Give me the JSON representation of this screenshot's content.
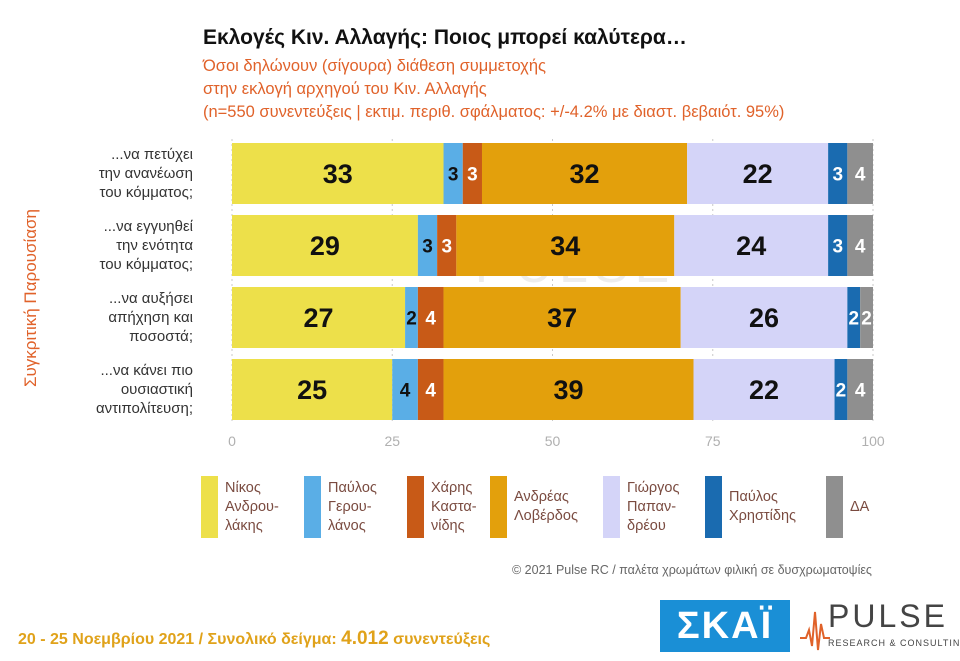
{
  "header": {
    "title": "Εκλογές Κιν. Αλλαγής: Ποιος μπορεί καλύτερα…",
    "subtitle_1": "Όσοι δηλώνουν (σίγουρα) διάθεση συμμετοχής",
    "subtitle_2": "στην εκλογή αρχηγού του Κιν. Αλλαγής",
    "subtitle_3": "(n=550 συνεντεύξεις | εκτιμ. περιθ. σφάλματος: +/-4.2% με διαστ. βεβαιότ. 95%)"
  },
  "side_label": "Συγκριτική Παρουσίαση",
  "watermark": {
    "word": "PULSE",
    "sub": "RESEARCH & CONSULTING"
  },
  "chart_data": {
    "type": "bar",
    "orientation": "horizontal-stacked",
    "categories": [
      [
        "...να πετύχει",
        "την ανανέωση",
        "του κόμματος;"
      ],
      [
        "...να εγγυηθεί",
        "την ενότητα",
        "του κόμματος;"
      ],
      [
        "...να αυξήσει",
        "απήχηση και",
        "ποσοστά;"
      ],
      [
        "...να κάνει πιο",
        "ουσιαστική",
        "αντιπολίτευση;"
      ]
    ],
    "series": [
      {
        "name": [
          "Νίκος",
          "Ανδρου-",
          "λάκης"
        ],
        "color": "#ede04a",
        "values": [
          33,
          29,
          27,
          25
        ]
      },
      {
        "name": [
          "Παύλος",
          "Γερου-",
          "λάνος"
        ],
        "color": "#5aaee6",
        "values": [
          3,
          3,
          2,
          4
        ]
      },
      {
        "name": [
          "Χάρης",
          "Καστα-",
          "νίδης"
        ],
        "color": "#c85a17",
        "values": [
          3,
          3,
          4,
          4
        ]
      },
      {
        "name": [
          "Ανδρέας",
          "Λοβέρδος"
        ],
        "color": "#e3a00c",
        "values": [
          32,
          34,
          37,
          39
        ]
      },
      {
        "name": [
          "Γιώργος",
          "Παπαν-",
          "δρέου"
        ],
        "color": "#d4d4f8",
        "values": [
          22,
          24,
          26,
          22
        ]
      },
      {
        "name": [
          "Παύλος",
          "Χρηστίδης"
        ],
        "color": "#1a6bb0",
        "values": [
          3,
          3,
          2,
          2
        ]
      },
      {
        "name": [
          "ΔΑ"
        ],
        "color": "#8f8f8f",
        "values": [
          4,
          4,
          2,
          4
        ]
      }
    ],
    "xlim": [
      0,
      100
    ],
    "xticks": [
      "0",
      "25",
      "50",
      "75",
      "100"
    ],
    "grid": true
  },
  "copyright": "© 2021 Pulse RC  /  παλέτα χρωμάτων φιλική σε δυσχρωματοψίες",
  "footer": {
    "dates": "20 - 25  Νοεμβρίου 2021  /  Συνολικό δείγμα:",
    "sample": "4.012",
    "unit": "συνεντεύξεις"
  },
  "logos": {
    "skai": "ΣΚΑΪ",
    "pulse": "PULSE",
    "pulse_sub": "RESEARCH & CONSULTING"
  }
}
